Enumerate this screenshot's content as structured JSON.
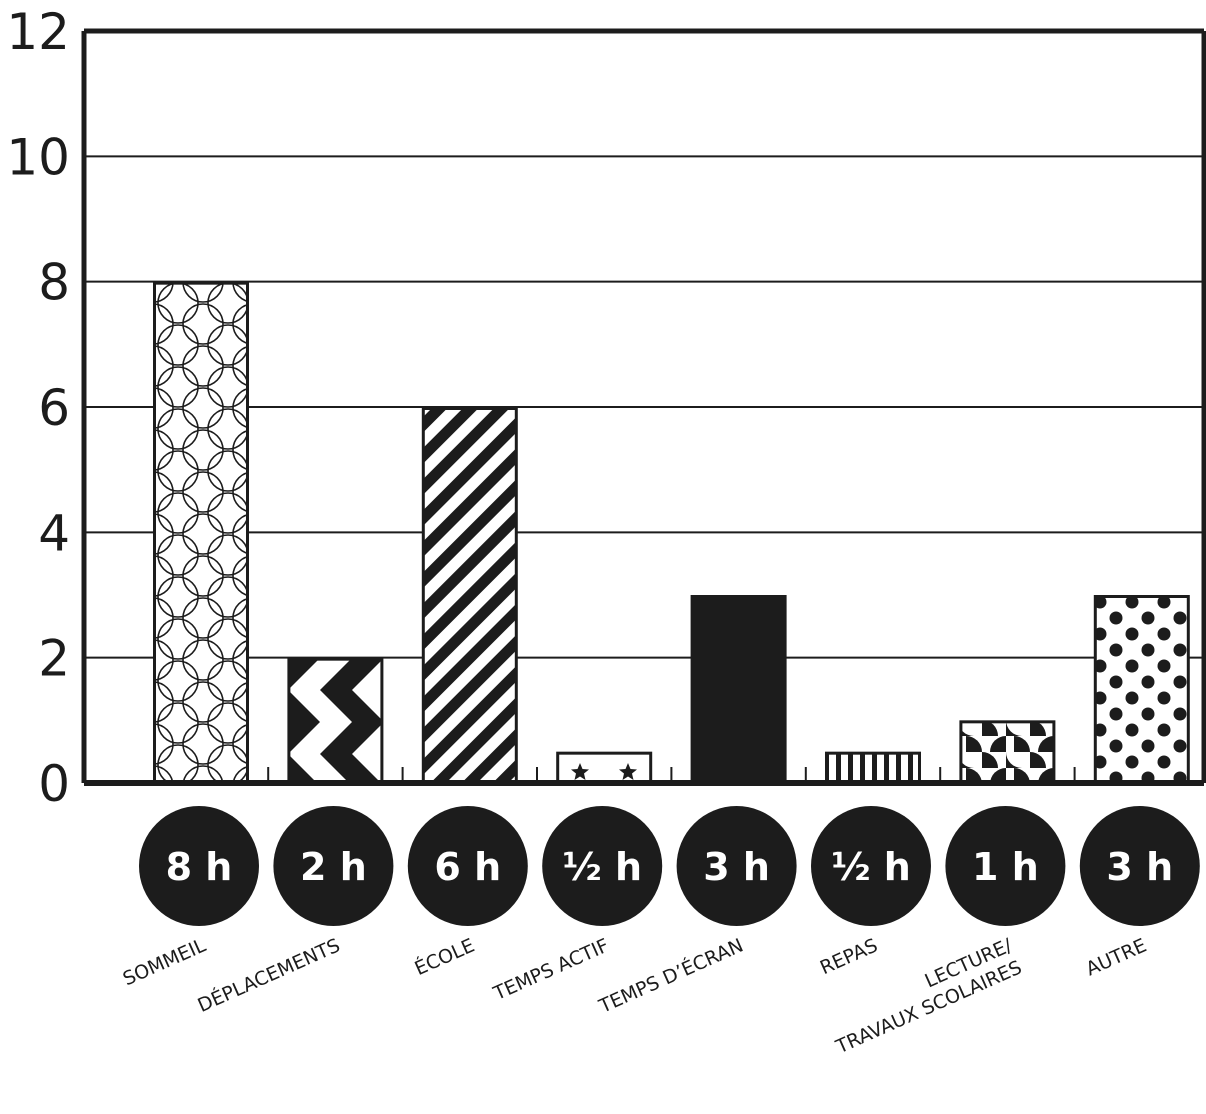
{
  "chart_data": {
    "type": "bar",
    "categories": [
      "SOMMEIL",
      "DÉPLACEMENTS",
      "ÉCOLE",
      "TEMPS ACTIF",
      "TEMPS D’ÉCRAN",
      "REPAS",
      "LECTURE/ TRAVAUX SCOLAIRES",
      "AUTRE"
    ],
    "category_lines": [
      [
        "SOMMEIL"
      ],
      [
        "DÉPLACEMENTS"
      ],
      [
        "ÉCOLE"
      ],
      [
        "TEMPS ACTIF"
      ],
      [
        "TEMPS D’ÉCRAN"
      ],
      [
        "REPAS"
      ],
      [
        "LECTURE/",
        "TRAVAUX SCOLAIRES"
      ],
      [
        "AUTRE"
      ]
    ],
    "values": [
      8,
      2,
      6,
      0.5,
      3,
      0.5,
      1,
      3
    ],
    "value_labels": [
      "8 h",
      "2 h",
      "6 h",
      "½ h",
      "3 h",
      "½ h",
      "1 h",
      "3 h"
    ],
    "patterns": [
      "circles",
      "triangles",
      "diagonal-stripes",
      "stars",
      "solid",
      "vertical-stripes",
      "quarter-circles",
      "dots"
    ],
    "yticks": [
      0,
      2,
      4,
      6,
      8,
      10,
      12
    ],
    "ylim": [
      0,
      12
    ],
    "grid": true,
    "title": "",
    "xlabel": "",
    "ylabel": "",
    "colors": {
      "ink": "#1c1c1c",
      "paper": "#ffffff"
    }
  }
}
